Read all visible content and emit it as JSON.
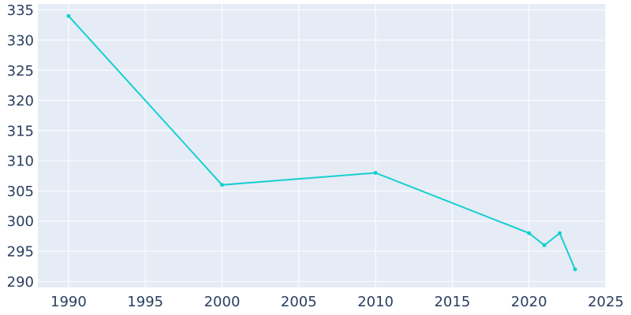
{
  "chart_data": {
    "type": "line",
    "title": "",
    "xlabel": "",
    "ylabel": "",
    "xlim": [
      1988,
      2025
    ],
    "ylim": [
      289,
      336
    ],
    "x_ticks": [
      1990,
      1995,
      2000,
      2005,
      2010,
      2015,
      2020,
      2025
    ],
    "y_ticks": [
      290,
      295,
      300,
      305,
      310,
      315,
      320,
      325,
      330,
      335
    ],
    "grid": true,
    "legend": "none",
    "colors": {
      "line": "#17cfcf",
      "plot_bg": "#e5ecf6",
      "grid": "#ffffff",
      "text": "#2a3f5f"
    },
    "series": [
      {
        "x": [
          1990,
          2000,
          2010,
          2020,
          2021,
          2022,
          2023
        ],
        "y": [
          334,
          306,
          308,
          298,
          296,
          298,
          292
        ]
      }
    ]
  }
}
